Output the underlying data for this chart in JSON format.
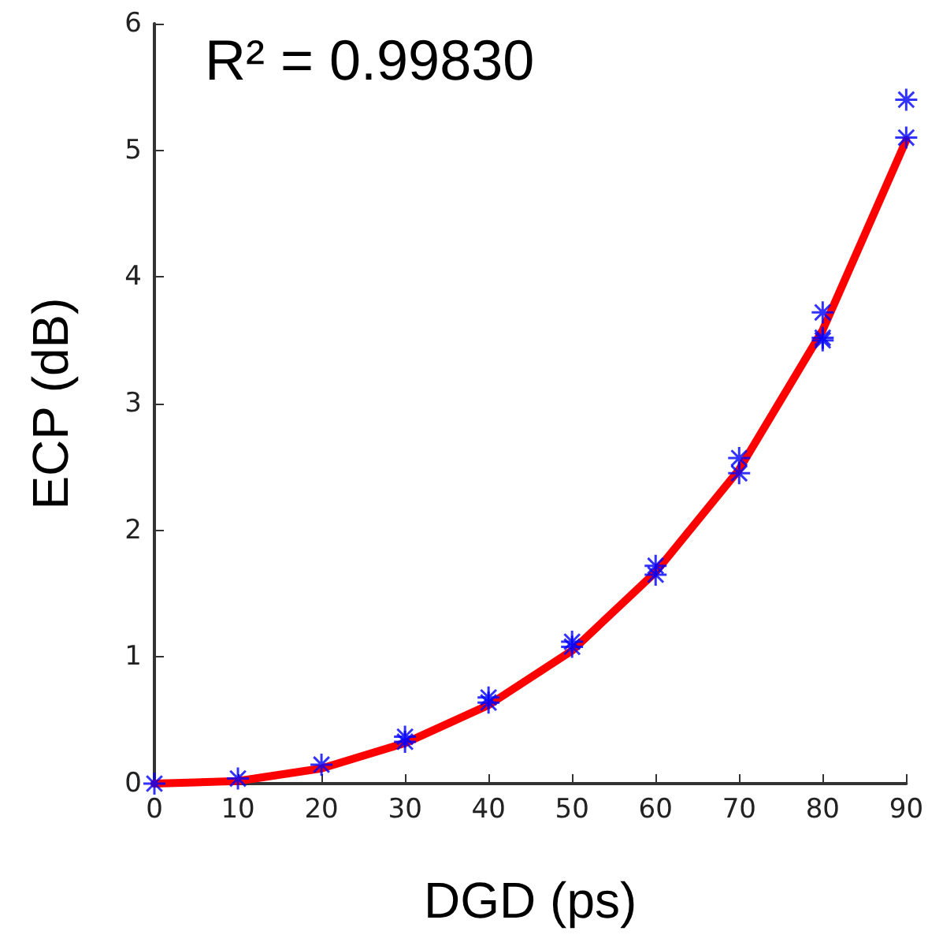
{
  "chart_data": {
    "type": "scatter",
    "xlabel": "DGD (ps)",
    "ylabel": "ECP (dB)",
    "annotations": [
      "R² = 0.99830"
    ],
    "xlim": [
      0,
      90
    ],
    "xticks": [
      0,
      10,
      20,
      30,
      40,
      50,
      60,
      70,
      80,
      90
    ],
    "ylim": [
      0,
      6
    ],
    "yticks": [
      0,
      1,
      2,
      3,
      4,
      5,
      6
    ],
    "grid": false,
    "series": [
      {
        "type": "line",
        "color": "#ff0000",
        "marker": "none",
        "line_style": "solid",
        "x": [
          0,
          10,
          20,
          30,
          40,
          50,
          60,
          70,
          80,
          90
        ],
        "values": [
          0,
          0.02,
          0.12,
          0.32,
          0.62,
          1.05,
          1.67,
          2.48,
          3.58,
          5.08
        ]
      },
      {
        "color": "#0000ff",
        "marker": "cross",
        "x": [
          0,
          10,
          20,
          30,
          30,
          40,
          40,
          50,
          50,
          60,
          60,
          70,
          70,
          80,
          80,
          80,
          90,
          90
        ],
        "values": [
          0,
          0.04,
          0.15,
          0.37,
          0.33,
          0.68,
          0.64,
          1.12,
          1.08,
          1.72,
          1.65,
          2.57,
          2.45,
          3.72,
          3.52,
          3.5,
          5.4,
          5.1
        ]
      }
    ]
  }
}
